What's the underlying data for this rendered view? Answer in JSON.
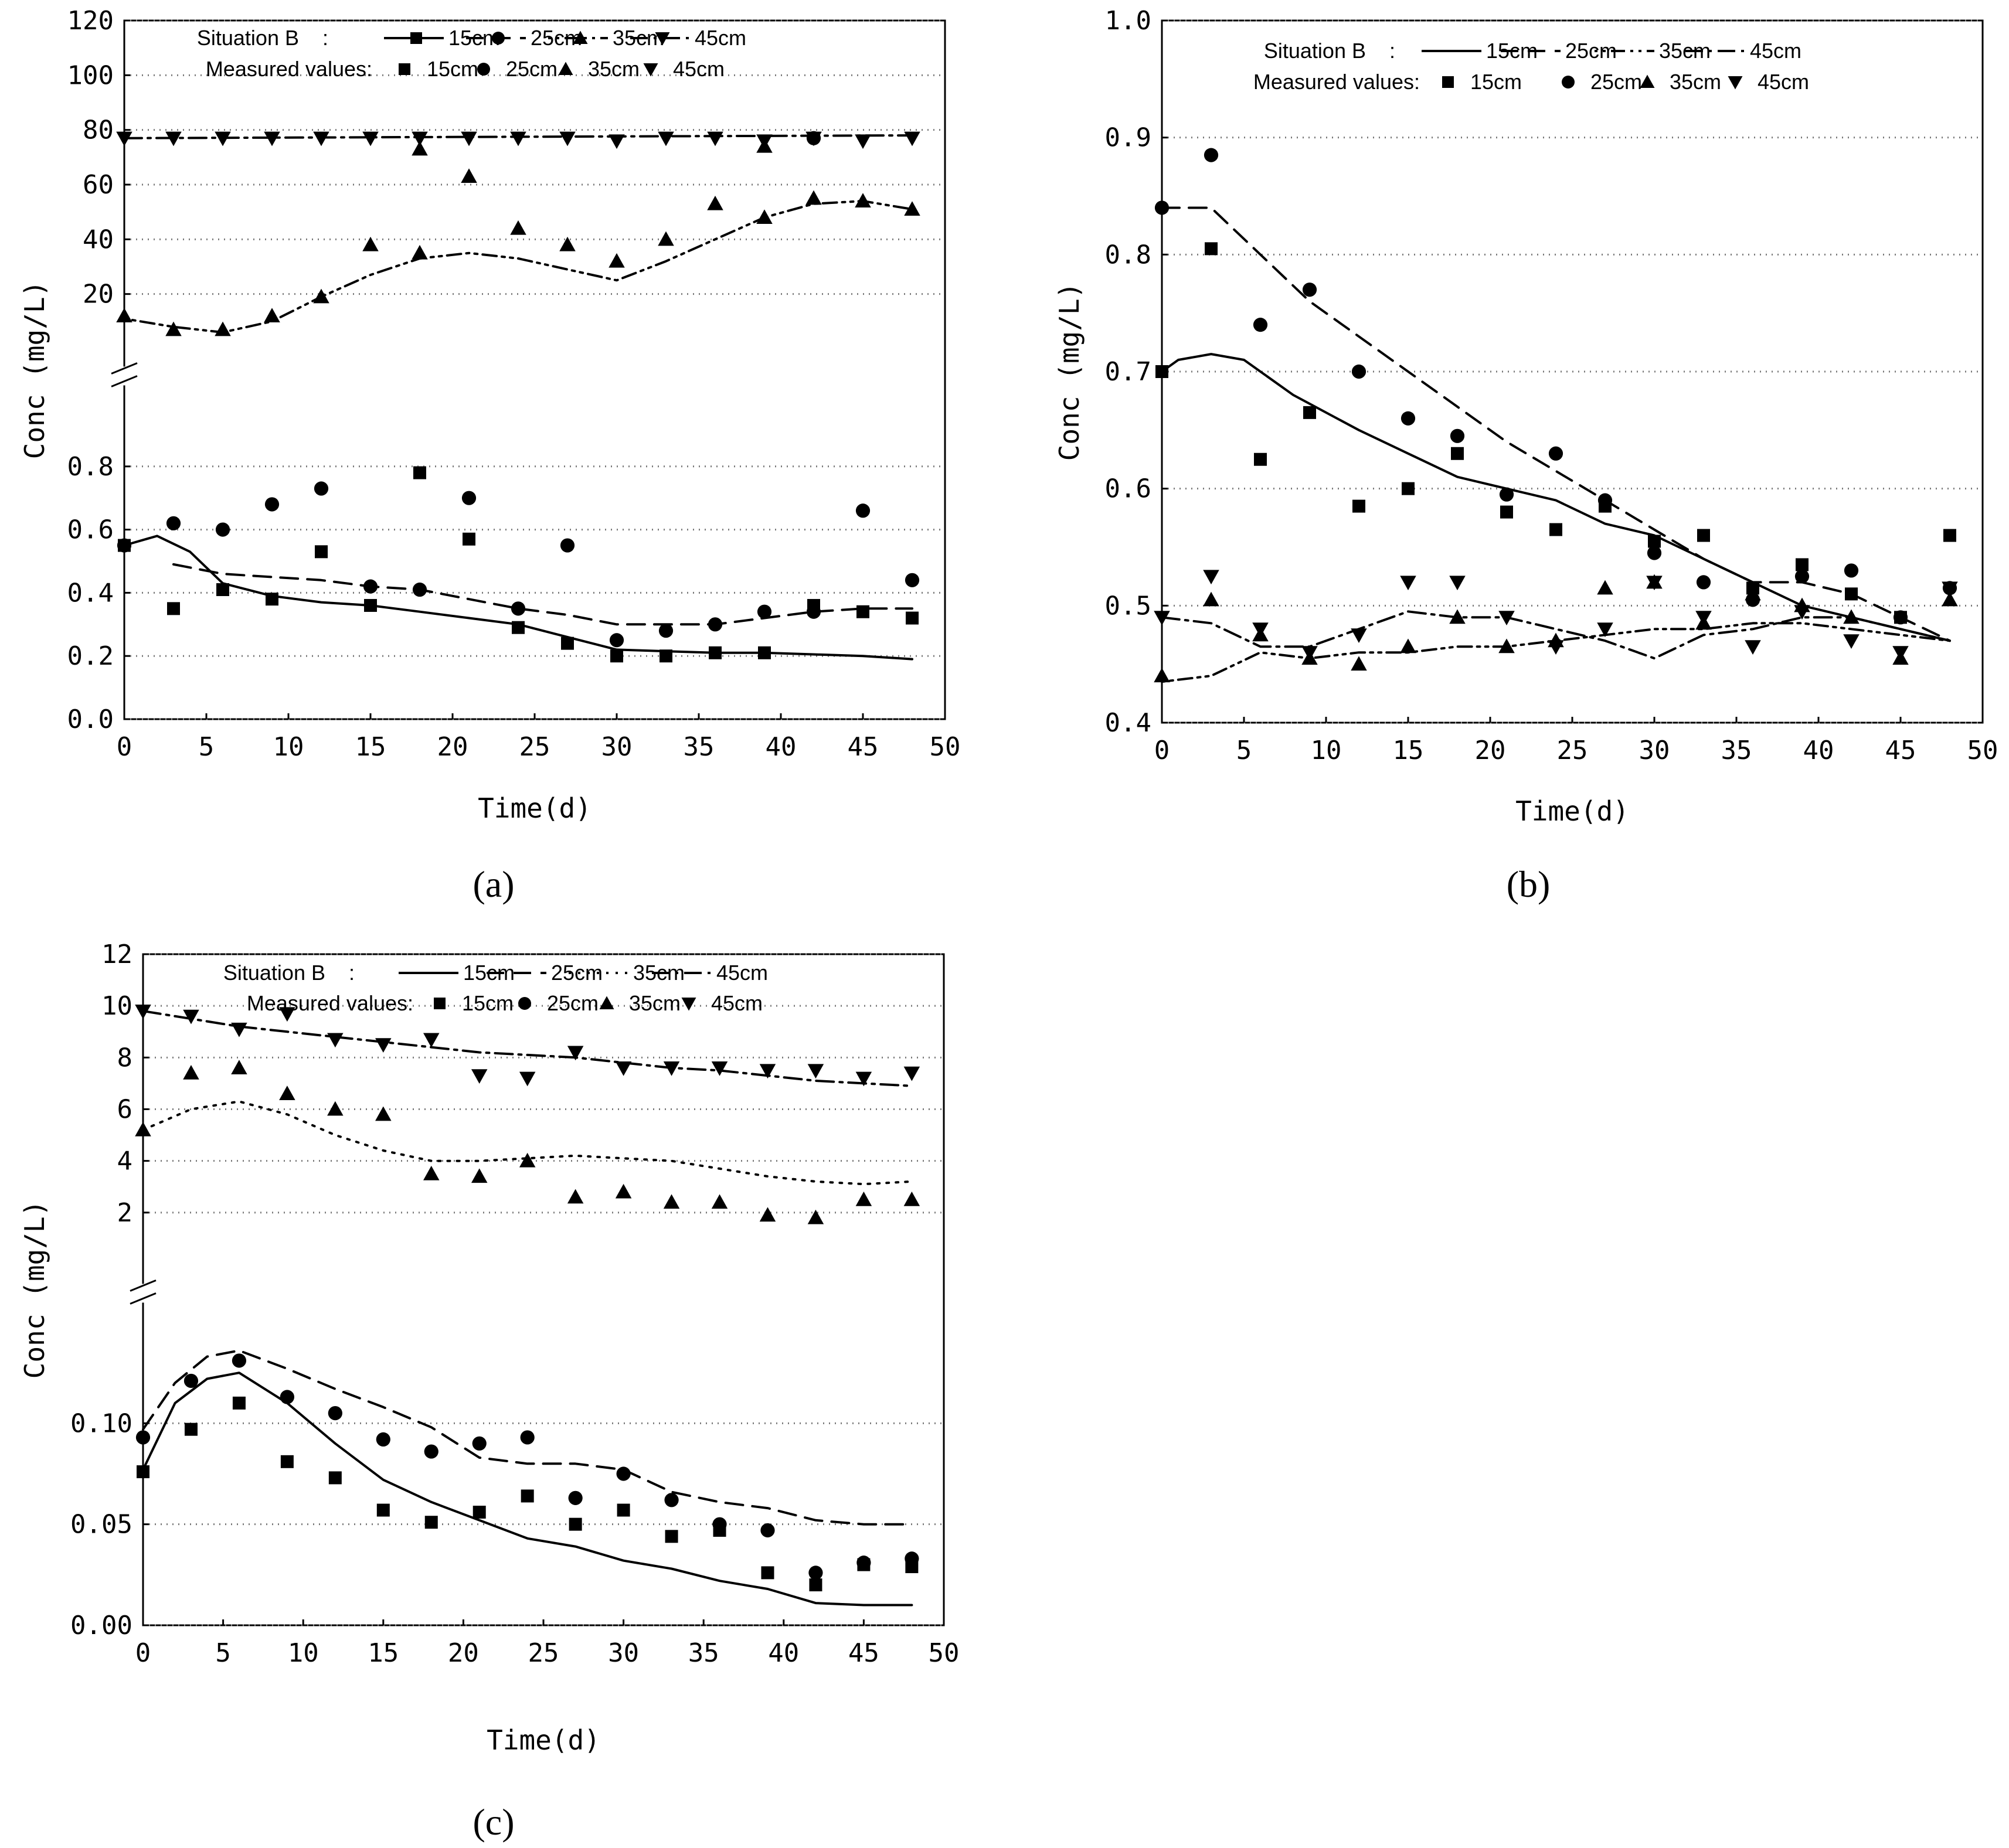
{
  "figure": {
    "legend_situation": "Situation B",
    "legend_measured": "Measured values:"
  },
  "chart_data": [
    {
      "id": "a",
      "type": "line",
      "label": "(a)",
      "xlabel": "Time(d)",
      "ylabel": "Conc (mg/L)",
      "xlim": [
        0,
        50
      ],
      "xticks": [
        "0",
        "5",
        "10",
        "15",
        "20",
        "25",
        "30",
        "35",
        "40",
        "45",
        "50"
      ],
      "broken_axis": true,
      "upper_ylim": [
        0,
        120
      ],
      "upper_yticks": [
        "20",
        "40",
        "60",
        "80",
        "100",
        "120"
      ],
      "lower_ylim": [
        0,
        1
      ],
      "lower_yticks": [
        "0.0",
        "0.2",
        "0.4",
        "0.6",
        "0.8"
      ],
      "legend": {
        "situation": "Situation B",
        "measured": "Measured values:",
        "series_labels": [
          "15cm",
          "25cm",
          "35cm",
          "45cm"
        ]
      },
      "series": [
        {
          "name": "15cm",
          "segment": "lower",
          "line_style": "solid",
          "marker": "square",
          "sim_x": [
            0,
            2,
            4,
            6,
            9,
            12,
            15,
            18,
            21,
            24,
            27,
            30,
            33,
            36,
            39,
            42,
            45,
            48
          ],
          "sim_y": [
            0.55,
            0.58,
            0.53,
            0.43,
            0.39,
            0.37,
            0.36,
            0.34,
            0.32,
            0.3,
            0.26,
            0.22,
            0.215,
            0.21,
            0.21,
            0.205,
            0.2,
            0.19
          ],
          "meas_x": [
            0,
            3,
            6,
            9,
            12,
            15,
            18,
            21,
            24,
            27,
            30,
            33,
            36,
            39,
            42,
            45,
            48
          ],
          "meas_y": [
            0.55,
            0.35,
            0.41,
            0.38,
            0.53,
            0.36,
            0.78,
            0.57,
            0.29,
            0.24,
            0.2,
            0.2,
            0.21,
            0.21,
            0.36,
            0.34,
            0.32
          ]
        },
        {
          "name": "25cm",
          "segment": "lower",
          "line_style": "dash",
          "marker": "circle",
          "sim_x": [
            3,
            6,
            9,
            12,
            15,
            18,
            21,
            24,
            27,
            30,
            33,
            36,
            39,
            42,
            45,
            48
          ],
          "sim_y": [
            0.49,
            0.46,
            0.45,
            0.44,
            0.42,
            0.41,
            0.38,
            0.35,
            0.33,
            0.3,
            0.3,
            0.3,
            0.32,
            0.34,
            0.35,
            0.35
          ],
          "meas_x": [
            0,
            3,
            6,
            9,
            12,
            15,
            18,
            21,
            24,
            27,
            30,
            33,
            36,
            39,
            42,
            45,
            48
          ],
          "meas_y": [
            0.55,
            0.62,
            0.6,
            0.68,
            0.73,
            0.42,
            0.41,
            0.7,
            0.35,
            0.55,
            0.25,
            0.28,
            0.3,
            0.34,
            0.34,
            0.66,
            0.44
          ]
        },
        {
          "name": "35cm",
          "segment": "upper",
          "line_style": "dot-dot-dash",
          "marker": "triangle-up",
          "sim_x": [
            0,
            3,
            6,
            9,
            12,
            15,
            18,
            21,
            24,
            27,
            30,
            33,
            36,
            39,
            42,
            45,
            48
          ],
          "sim_y": [
            11,
            8,
            6,
            10,
            19,
            27,
            33,
            35,
            33,
            29,
            25,
            32,
            40,
            48,
            53,
            54,
            51
          ],
          "meas_x": [
            0,
            3,
            6,
            9,
            12,
            15,
            18,
            21,
            24,
            27,
            30,
            33,
            36,
            39,
            42,
            45,
            48
          ],
          "meas_y": [
            12,
            7,
            7,
            12,
            19,
            38,
            35,
            63,
            44,
            38,
            32,
            40,
            53,
            48,
            55,
            54,
            51
          ]
        },
        {
          "name": "45cm",
          "segment": "upper",
          "line_style": "dash-dot",
          "marker": "triangle-down",
          "sim_x": [
            0,
            48
          ],
          "sim_y": [
            77,
            78
          ],
          "meas_x": [
            0,
            3,
            6,
            9,
            12,
            15,
            18,
            21,
            24,
            27,
            30,
            33,
            36,
            39,
            42,
            45,
            48
          ],
          "meas_y": [
            77,
            77,
            77,
            77,
            77,
            77,
            77,
            77,
            77,
            77,
            76,
            77,
            77,
            76,
            77,
            76,
            77
          ]
        }
      ],
      "extra_points": [
        {
          "x": 18,
          "y": 73,
          "marker": "triangle-up"
        },
        {
          "x": 39,
          "y": 74,
          "marker": "triangle-up"
        },
        {
          "x": 42,
          "y": 77,
          "marker": "circle"
        }
      ]
    },
    {
      "id": "b",
      "type": "line",
      "label": "(b)",
      "xlabel": "Time(d)",
      "ylabel": "Conc (mg/L)",
      "xlim": [
        0,
        50
      ],
      "xticks": [
        "0",
        "5",
        "10",
        "15",
        "20",
        "25",
        "30",
        "35",
        "40",
        "45",
        "50"
      ],
      "broken_axis": false,
      "ylim": [
        0.4,
        1.0
      ],
      "yticks": [
        "0.4",
        "0.5",
        "0.6",
        "0.7",
        "0.8",
        "0.9",
        "1.0"
      ],
      "legend": {
        "situation": "Situation B",
        "measured": "Measured values:",
        "series_labels": [
          "15cm",
          "25cm",
          "35cm",
          "45cm"
        ]
      },
      "series": [
        {
          "name": "15cm",
          "line_style": "solid",
          "marker": "square",
          "sim_x": [
            0,
            1,
            3,
            5,
            8,
            12,
            15,
            18,
            21,
            24,
            27,
            30,
            33,
            36,
            39,
            42,
            45,
            48
          ],
          "sim_y": [
            0.7,
            0.71,
            0.715,
            0.71,
            0.68,
            0.65,
            0.63,
            0.61,
            0.6,
            0.59,
            0.57,
            0.56,
            0.54,
            0.52,
            0.5,
            0.49,
            0.48,
            0.47
          ],
          "meas_x": [
            0,
            3,
            6,
            9,
            12,
            15,
            18,
            21,
            24,
            27,
            30,
            33,
            36,
            39,
            42,
            45,
            48
          ],
          "meas_y": [
            0.7,
            0.805,
            0.625,
            0.665,
            0.585,
            0.6,
            0.63,
            0.58,
            0.565,
            0.585,
            0.555,
            0.56,
            0.515,
            0.535,
            0.51,
            0.49,
            0.56
          ]
        },
        {
          "name": "25cm",
          "line_style": "dash",
          "marker": "circle",
          "sim_x": [
            0,
            3,
            6,
            9,
            12,
            15,
            18,
            21,
            24,
            27,
            30,
            33,
            36,
            39,
            42,
            45,
            48
          ],
          "sim_y": [
            0.84,
            0.84,
            0.8,
            0.76,
            0.73,
            0.7,
            0.67,
            0.64,
            0.615,
            0.59,
            0.565,
            0.54,
            0.52,
            0.52,
            0.51,
            0.49,
            0.47
          ],
          "meas_x": [
            0,
            3,
            6,
            9,
            12,
            15,
            18,
            21,
            24,
            27,
            30,
            33,
            36,
            39,
            42,
            45,
            48
          ],
          "meas_y": [
            0.84,
            0.885,
            0.74,
            0.77,
            0.7,
            0.66,
            0.645,
            0.595,
            0.63,
            0.59,
            0.545,
            0.52,
            0.505,
            0.525,
            0.53,
            0.49,
            0.515
          ]
        },
        {
          "name": "35cm",
          "line_style": "dot-dot-dash",
          "marker": "triangle-up",
          "sim_x": [
            0,
            3,
            6,
            9,
            12,
            15,
            18,
            21,
            24,
            27,
            30,
            33,
            36,
            39,
            42,
            45,
            48
          ],
          "sim_y": [
            0.435,
            0.44,
            0.46,
            0.455,
            0.46,
            0.46,
            0.465,
            0.465,
            0.47,
            0.475,
            0.48,
            0.48,
            0.485,
            0.485,
            0.48,
            0.475,
            0.47
          ],
          "meas_x": [
            0,
            3,
            6,
            9,
            12,
            15,
            18,
            21,
            24,
            27,
            30,
            33,
            36,
            39,
            42,
            45,
            48
          ],
          "meas_y": [
            0.44,
            0.505,
            0.475,
            0.455,
            0.45,
            0.465,
            0.49,
            0.465,
            0.47,
            0.515,
            0.52,
            0.485,
            0.51,
            0.5,
            0.49,
            0.455,
            0.505
          ]
        },
        {
          "name": "45cm",
          "line_style": "dash-dot",
          "marker": "triangle-down",
          "sim_x": [
            0,
            3,
            6,
            9,
            12,
            15,
            18,
            21,
            24,
            27,
            30,
            33,
            36,
            39,
            42,
            45,
            48
          ],
          "sim_y": [
            0.49,
            0.485,
            0.465,
            0.465,
            0.48,
            0.495,
            0.49,
            0.49,
            0.48,
            0.47,
            0.455,
            0.475,
            0.48,
            0.49,
            0.49,
            0.48,
            0.47
          ],
          "meas_x": [
            0,
            3,
            6,
            9,
            12,
            15,
            18,
            21,
            24,
            27,
            30,
            33,
            36,
            39,
            42,
            45,
            48
          ],
          "meas_y": [
            0.49,
            0.525,
            0.48,
            0.46,
            0.475,
            0.52,
            0.52,
            0.49,
            0.465,
            0.48,
            0.52,
            0.49,
            0.465,
            0.495,
            0.47,
            0.46,
            0.515
          ]
        }
      ],
      "extra_points": []
    },
    {
      "id": "c",
      "type": "line",
      "label": "(c)",
      "xlabel": "Time(d)",
      "ylabel": "Conc (mg/L)",
      "xlim": [
        0,
        50
      ],
      "xticks": [
        "0",
        "5",
        "10",
        "15",
        "20",
        "25",
        "30",
        "35",
        "40",
        "45",
        "50"
      ],
      "broken_axis": true,
      "upper_ylim": [
        0,
        12
      ],
      "upper_yticks": [
        "2",
        "4",
        "6",
        "8",
        "10",
        "12"
      ],
      "lower_ylim": [
        0,
        0.15
      ],
      "lower_yticks": [
        "0.00",
        "0.05",
        "0.10"
      ],
      "legend": {
        "situation": "Situation B",
        "measured": "Measured values:",
        "series_labels": [
          "15cm",
          "25cm",
          "35cm",
          "45cm"
        ]
      },
      "series": [
        {
          "name": "15cm",
          "segment": "lower",
          "line_style": "solid",
          "marker": "square",
          "sim_x": [
            0,
            2,
            4,
            6,
            9,
            12,
            15,
            18,
            21,
            24,
            27,
            30,
            33,
            36,
            39,
            42,
            45,
            48
          ],
          "sim_y": [
            0.077,
            0.11,
            0.122,
            0.125,
            0.11,
            0.09,
            0.072,
            0.061,
            0.052,
            0.043,
            0.039,
            0.032,
            0.028,
            0.022,
            0.018,
            0.011,
            0.01,
            0.01
          ],
          "meas_x": [
            0,
            3,
            6,
            9,
            12,
            15,
            18,
            21,
            24,
            27,
            30,
            33,
            36,
            39,
            42,
            45,
            48
          ],
          "meas_y": [
            0.076,
            0.097,
            0.11,
            0.081,
            0.073,
            0.057,
            0.051,
            0.056,
            0.064,
            0.05,
            0.057,
            0.044,
            0.047,
            0.026,
            0.02,
            0.03,
            0.029
          ]
        },
        {
          "name": "25cm",
          "segment": "lower",
          "line_style": "dash",
          "marker": "circle",
          "sim_x": [
            0,
            2,
            4,
            6,
            9,
            12,
            15,
            18,
            21,
            24,
            27,
            30,
            33,
            36,
            39,
            42,
            45,
            48
          ],
          "sim_y": [
            0.097,
            0.12,
            0.133,
            0.136,
            0.127,
            0.117,
            0.108,
            0.098,
            0.083,
            0.08,
            0.08,
            0.077,
            0.066,
            0.061,
            0.058,
            0.052,
            0.05,
            0.05
          ],
          "meas_x": [
            0,
            3,
            6,
            9,
            12,
            15,
            18,
            21,
            24,
            27,
            30,
            33,
            36,
            39,
            42,
            45,
            48
          ],
          "meas_y": [
            0.093,
            0.121,
            0.131,
            0.113,
            0.105,
            0.092,
            0.086,
            0.09,
            0.093,
            0.063,
            0.075,
            0.062,
            0.05,
            0.047,
            0.026,
            0.031,
            0.033
          ]
        },
        {
          "name": "35cm",
          "segment": "upper",
          "line_style": "dot",
          "marker": "triangle-up",
          "sim_x": [
            0,
            3,
            6,
            9,
            12,
            15,
            18,
            21,
            24,
            27,
            30,
            33,
            36,
            39,
            42,
            45,
            48
          ],
          "sim_y": [
            5.2,
            6.0,
            6.3,
            5.8,
            5.0,
            4.4,
            4.0,
            4.0,
            4.1,
            4.2,
            4.1,
            4.0,
            3.7,
            3.4,
            3.2,
            3.1,
            3.2
          ],
          "meas_x": [
            0,
            3,
            6,
            9,
            12,
            15,
            18,
            21,
            24,
            27,
            30,
            33,
            36,
            39,
            42,
            45,
            48
          ],
          "meas_y": [
            5.2,
            7.4,
            7.6,
            6.6,
            6.0,
            5.8,
            3.5,
            3.4,
            4.0,
            2.6,
            2.8,
            2.4,
            2.4,
            1.9,
            1.8,
            2.5,
            2.5
          ]
        },
        {
          "name": "45cm",
          "segment": "upper",
          "line_style": "dash-dot",
          "marker": "triangle-down",
          "sim_x": [
            0,
            3,
            6,
            9,
            12,
            15,
            18,
            21,
            24,
            27,
            30,
            33,
            36,
            39,
            42,
            45,
            48
          ],
          "sim_y": [
            9.8,
            9.5,
            9.2,
            9.0,
            8.8,
            8.6,
            8.4,
            8.2,
            8.1,
            8.0,
            7.8,
            7.6,
            7.5,
            7.3,
            7.1,
            7.0,
            6.9
          ],
          "meas_x": [
            0,
            3,
            6,
            9,
            12,
            15,
            18,
            21,
            24,
            27,
            30,
            33,
            36,
            39,
            42,
            45,
            48
          ],
          "meas_y": [
            9.8,
            9.6,
            9.1,
            9.7,
            8.7,
            8.5,
            8.7,
            7.3,
            7.2,
            8.2,
            7.6,
            7.6,
            7.6,
            7.5,
            7.5,
            7.2,
            7.4
          ]
        }
      ],
      "extra_points": []
    }
  ]
}
